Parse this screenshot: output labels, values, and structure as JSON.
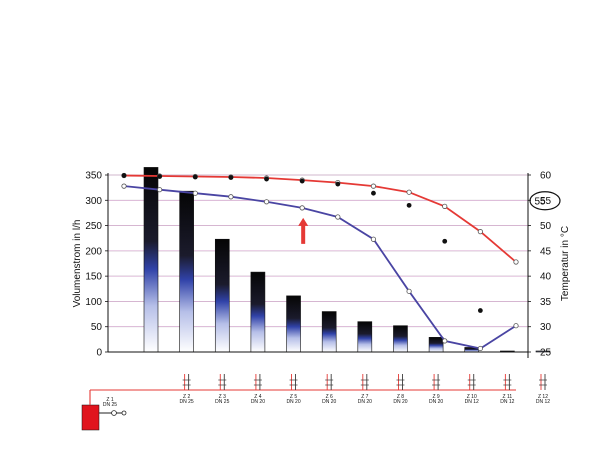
{
  "chart_data": {
    "type": "bar",
    "categories": [
      "Z 1",
      "Z 2",
      "Z 3",
      "Z 4",
      "Z 5",
      "Z 6",
      "Z 7",
      "Z 8",
      "Z 9",
      "Z 10",
      "Z 11",
      "Z 12"
    ],
    "values": [
      365,
      318,
      223,
      158,
      111,
      80,
      60,
      52,
      29,
      9,
      2,
      2
    ],
    "series": [
      {
        "values": [
          349,
          348,
          347,
          346,
          344,
          340,
          335,
          328,
          316,
          288,
          238,
          178
        ],
        "color": "#e53935"
      },
      {
        "values": [
          328,
          321,
          314,
          307,
          297,
          285,
          267,
          223,
          120,
          22,
          7,
          52
        ],
        "color": "#4a45a3"
      },
      {
        "values": [
          349,
          347,
          346,
          345,
          342,
          338,
          332,
          314,
          290,
          219,
          82,
          null
        ],
        "color": "#111111"
      }
    ],
    "y_left": {
      "label": "Volumenstrom in l/h",
      "range": [
        0,
        350
      ],
      "ticks": [
        0,
        50,
        100,
        150,
        200,
        250,
        300,
        350
      ]
    },
    "y_right": {
      "label": "Temperatur in °C",
      "range": [
        25,
        60
      ],
      "ticks": [
        25,
        30,
        35,
        40,
        45,
        50,
        55,
        60
      ]
    },
    "grid": true,
    "annotation": {
      "label": "55",
      "color": "#e53935"
    },
    "heater_color": "#e0141d",
    "pipe_color": "#e53935"
  },
  "section_labels": [
    {
      "name": "Z 1",
      "dn": "DN 25"
    },
    {
      "name": "Z 2",
      "dn": "DN 25"
    },
    {
      "name": "Z 3",
      "dn": "DN 25"
    },
    {
      "name": "Z 4",
      "dn": "DN 20"
    },
    {
      "name": "Z 5",
      "dn": "DN 20"
    },
    {
      "name": "Z 6",
      "dn": "DN 20"
    },
    {
      "name": "Z 7",
      "dn": "DN 20"
    },
    {
      "name": "Z 8",
      "dn": "DN 20"
    },
    {
      "name": "Z 9",
      "dn": "DN 20"
    },
    {
      "name": "Z 10",
      "dn": "DN 12"
    },
    {
      "name": "Z 11",
      "dn": "DN 12"
    },
    {
      "name": "Z 12",
      "dn": "DN 12"
    }
  ]
}
